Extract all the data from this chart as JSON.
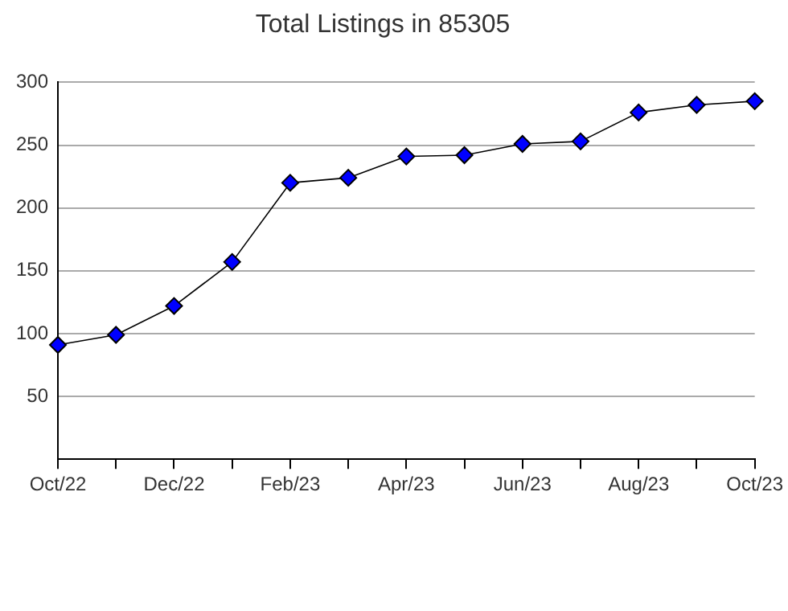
{
  "chart_data": {
    "type": "line",
    "title": "Total Listings in 85305",
    "categories": [
      "Oct/22",
      null,
      "Dec/22",
      null,
      "Feb/23",
      null,
      "Apr/23",
      null,
      "Jun/23",
      null,
      "Aug/23",
      null,
      "Oct/23"
    ],
    "series": [
      {
        "color": "#0000ff",
        "values": [
          91,
          99,
          122,
          157,
          220,
          224,
          241,
          242,
          251,
          253,
          276,
          282,
          285
        ]
      }
    ],
    "ylim": [
      0,
      300
    ],
    "yticks": [
      50,
      100,
      150,
      200,
      250,
      300
    ],
    "grid": "y",
    "legend": false,
    "marker": "diamond",
    "line_style": "solid"
  }
}
